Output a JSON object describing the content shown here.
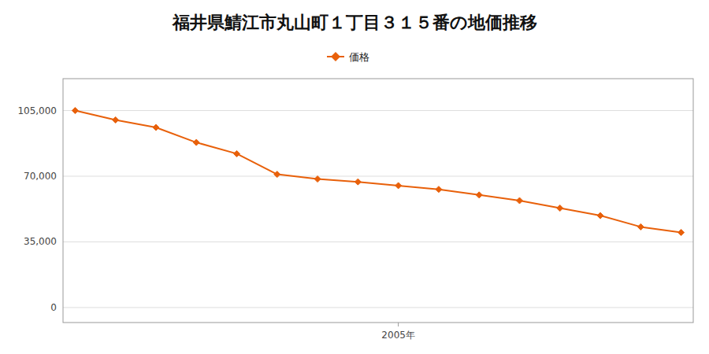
{
  "chart_data": {
    "type": "line",
    "title": "福井県鯖江市丸山町１丁目３１５番の地価推移",
    "x": [
      1997,
      1998,
      1999,
      2000,
      2001,
      2002,
      2003,
      2004,
      2005,
      2006,
      2007,
      2008,
      2009,
      2010,
      2011,
      2012
    ],
    "series": [
      {
        "name": "価格",
        "color": "#E8600A",
        "marker": "diamond",
        "values": [
          105000,
          100000,
          96000,
          88000,
          82000,
          71000,
          68500,
          67000,
          65000,
          63000,
          60000,
          57000,
          53000,
          49000,
          43000,
          40000
        ]
      }
    ],
    "xlim": [
      1996.7,
      2012.3
    ],
    "xticks": [
      {
        "value": 2005,
        "label": "2005年"
      }
    ],
    "ylim": [
      -8000,
      122000
    ],
    "yticks": [
      0,
      {
        "value": 35000,
        "label": "35,000"
      },
      {
        "value": 70000,
        "label": "70,000"
      },
      {
        "value": 105000,
        "label": "105,000"
      }
    ],
    "grid": true,
    "legend": "top"
  }
}
